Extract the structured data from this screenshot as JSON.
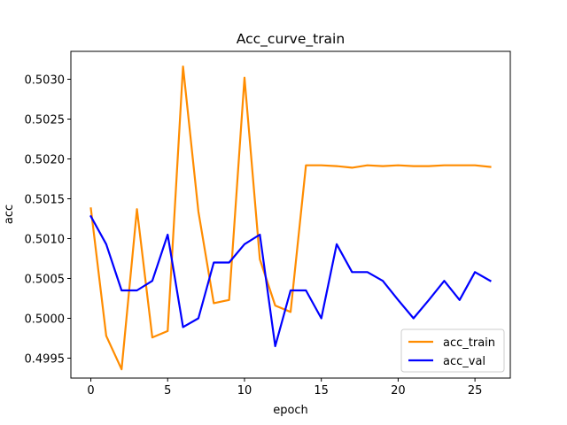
{
  "chart_data": {
    "type": "line",
    "title": "Acc_curve_train",
    "xlabel": "epoch",
    "ylabel": "acc",
    "xlim": [
      -1.3,
      27.3
    ],
    "ylim": [
      0.49925,
      0.50335
    ],
    "xticks": [
      0,
      5,
      10,
      15,
      20,
      25
    ],
    "xtick_labels": [
      "0",
      "5",
      "10",
      "15",
      "20",
      "25"
    ],
    "yticks": [
      0.4995,
      0.5,
      0.5005,
      0.501,
      0.5015,
      0.502,
      0.5025,
      0.503
    ],
    "ytick_labels": [
      "0.4995",
      "0.5000",
      "0.5005",
      "0.5010",
      "0.5015",
      "0.5020",
      "0.5025",
      "0.5030"
    ],
    "grid": false,
    "legend_position": "lower-right",
    "x": [
      0,
      1,
      2,
      3,
      4,
      5,
      6,
      7,
      8,
      9,
      10,
      11,
      12,
      13,
      14,
      15,
      16,
      17,
      18,
      19,
      20,
      21,
      22,
      23,
      24,
      25,
      26
    ],
    "series": [
      {
        "name": "acc_train",
        "color": "#ff8c00",
        "values": [
          0.50138,
          0.49978,
          0.49936,
          0.50137,
          0.49976,
          0.49984,
          0.50316,
          0.50134,
          0.50019,
          0.50023,
          0.50302,
          0.50074,
          0.50016,
          0.50008,
          0.50192,
          0.50192,
          0.50191,
          0.50189,
          0.50192,
          0.50191,
          0.50192,
          0.50191,
          0.50191,
          0.50192,
          0.50192,
          0.50192,
          0.5019
        ]
      },
      {
        "name": "acc_val",
        "color": "#0000ff",
        "values": [
          0.50128,
          0.50093,
          0.50035,
          0.50035,
          0.50047,
          0.50105,
          0.49989,
          0.5,
          0.5007,
          0.5007,
          0.50093,
          0.50105,
          0.49965,
          0.50035,
          0.50035,
          0.5,
          0.50093,
          0.50058,
          0.50058,
          0.50047,
          0.50023,
          0.5,
          0.50023,
          0.50047,
          0.50023,
          0.50058,
          0.50047
        ]
      }
    ]
  }
}
